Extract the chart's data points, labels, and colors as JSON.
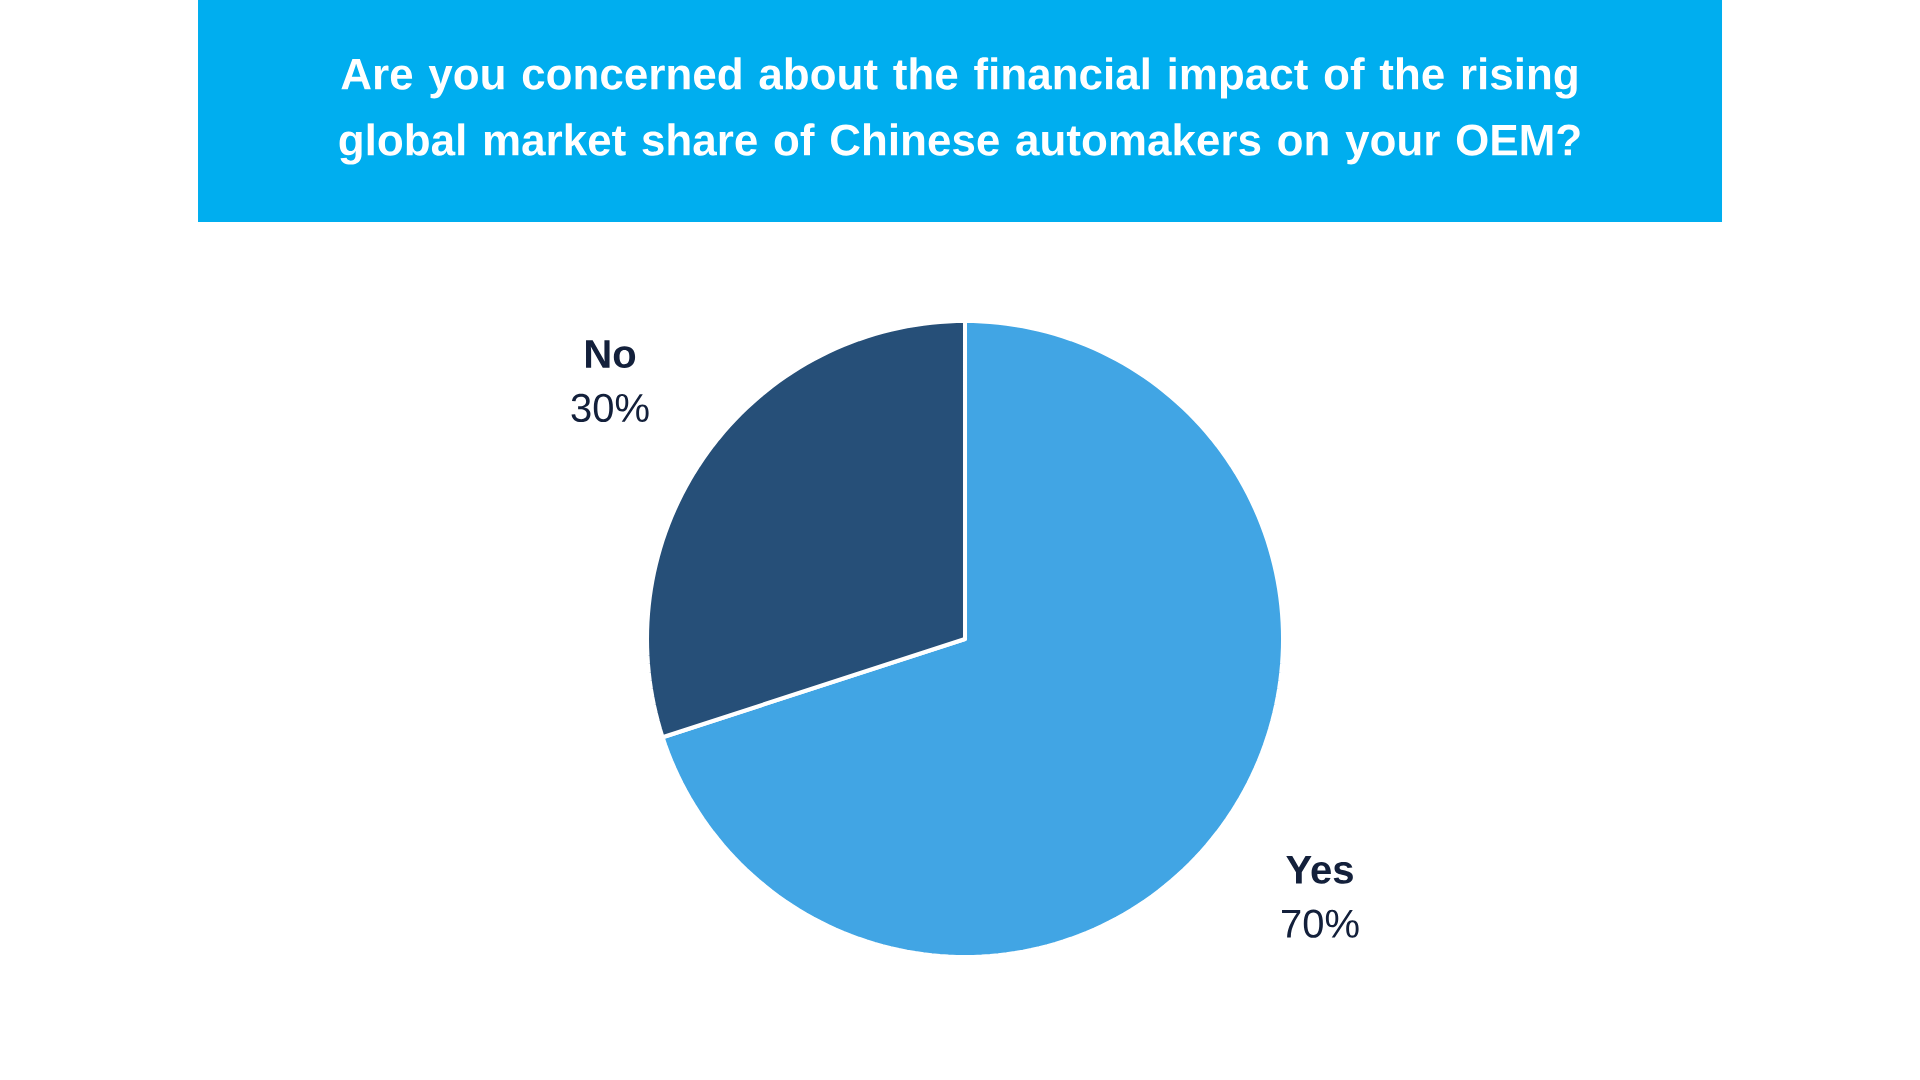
{
  "chart_data": {
    "type": "pie",
    "title": "Are you concerned about the financial impact of the rising global market share of Chinese automakers on your OEM?",
    "categories": [
      "Yes",
      "No"
    ],
    "values": [
      70,
      30
    ],
    "colors": [
      "#41a5e4",
      "#264f78"
    ],
    "value_labels": [
      "70%",
      "30%"
    ]
  }
}
